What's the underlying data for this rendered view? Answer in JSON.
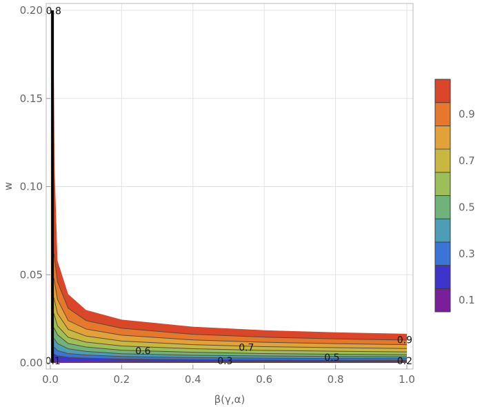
{
  "chart_data": {
    "type": "contour",
    "xlabel": "β(γ,α)",
    "ylabel": "w",
    "xlim": [
      0.0,
      1.0
    ],
    "ylim": [
      0.0,
      0.2
    ],
    "x_ticks": [
      "0.0",
      "0.2",
      "0.4",
      "0.6",
      "0.8",
      "1.0"
    ],
    "y_ticks": [
      "0.00",
      "0.05",
      "0.10",
      "0.15",
      "0.20"
    ],
    "grid": true,
    "contour_levels": [
      0.1,
      0.2,
      0.3,
      0.4,
      0.5,
      0.6,
      0.7,
      0.8,
      0.9,
      1.0
    ],
    "contour_curves": [
      {
        "level": 0.1,
        "x": [
          0.01,
          0.02,
          0.05,
          0.1,
          0.2,
          0.4,
          0.6,
          0.8,
          1.0
        ],
        "y": [
          0.0012,
          0.0011,
          0.0009,
          0.0008,
          0.0007,
          0.0006,
          0.0006,
          0.0005,
          0.0005
        ]
      },
      {
        "level": 0.2,
        "x": [
          0.01,
          0.02,
          0.05,
          0.1,
          0.2,
          0.4,
          0.6,
          0.8,
          1.0
        ],
        "y": [
          0.005,
          0.004,
          0.0032,
          0.0027,
          0.0022,
          0.0018,
          0.0016,
          0.0015,
          0.0014
        ]
      },
      {
        "level": 0.3,
        "x": [
          0.01,
          0.02,
          0.05,
          0.1,
          0.2,
          0.4,
          0.6,
          0.8,
          1.0
        ],
        "y": [
          0.009,
          0.007,
          0.0053,
          0.0045,
          0.0036,
          0.003,
          0.0027,
          0.0025,
          0.0024
        ]
      },
      {
        "level": 0.4,
        "x": [
          0.01,
          0.02,
          0.05,
          0.1,
          0.2,
          0.4,
          0.6,
          0.8,
          1.0
        ],
        "y": [
          0.014,
          0.011,
          0.008,
          0.0065,
          0.0052,
          0.0043,
          0.0039,
          0.0036,
          0.0034
        ]
      },
      {
        "level": 0.5,
        "x": [
          0.01,
          0.02,
          0.05,
          0.1,
          0.2,
          0.4,
          0.6,
          0.8,
          1.0
        ],
        "y": [
          0.02,
          0.016,
          0.011,
          0.009,
          0.0072,
          0.006,
          0.0053,
          0.0049,
          0.0046
        ]
      },
      {
        "level": 0.6,
        "x": [
          0.01,
          0.02,
          0.05,
          0.1,
          0.2,
          0.4,
          0.6,
          0.8,
          1.0
        ],
        "y": [
          0.028,
          0.021,
          0.0145,
          0.0118,
          0.0096,
          0.008,
          0.0071,
          0.0066,
          0.0062
        ]
      },
      {
        "level": 0.7,
        "x": [
          0.01,
          0.02,
          0.05,
          0.1,
          0.2,
          0.4,
          0.6,
          0.8,
          1.0
        ],
        "y": [
          0.037,
          0.028,
          0.019,
          0.0152,
          0.0124,
          0.0103,
          0.0092,
          0.0086,
          0.0081
        ]
      },
      {
        "level": 0.8,
        "x": [
          0.01,
          0.02,
          0.05,
          0.1,
          0.2,
          0.4,
          0.6,
          0.8,
          1.0
        ],
        "y": [
          0.048,
          0.036,
          0.024,
          0.0192,
          0.0157,
          0.013,
          0.0117,
          0.0109,
          0.0103
        ]
      },
      {
        "level": 0.9,
        "x": [
          0.01,
          0.02,
          0.05,
          0.1,
          0.2,
          0.4,
          0.6,
          0.8,
          1.0
        ],
        "y": [
          0.062,
          0.046,
          0.031,
          0.024,
          0.0196,
          0.0162,
          0.0146,
          0.0136,
          0.0129
        ]
      },
      {
        "level": 1.0,
        "x": [
          0.008,
          0.012,
          0.02,
          0.05,
          0.1,
          0.2,
          0.4,
          0.6,
          0.8,
          1.0
        ],
        "y": [
          0.2,
          0.11,
          0.058,
          0.039,
          0.03,
          0.0245,
          0.0205,
          0.0185,
          0.0173,
          0.0165
        ]
      }
    ],
    "contour_labels": [
      {
        "text": "0.6",
        "x": 0.26,
        "y": 0.0065
      },
      {
        "text": "0.7",
        "x": 0.55,
        "y": 0.0085
      },
      {
        "text": "0.3",
        "x": 0.49,
        "y": 0.0008
      },
      {
        "text": "0.5",
        "x": 0.79,
        "y": 0.0027
      },
      {
        "text": "0.9",
        "x": 0.995,
        "y": 0.0128
      },
      {
        "text": "0.2",
        "x": 0.995,
        "y": 0.0008
      },
      {
        "text": "0.1",
        "x": 0.005,
        "y": 0.0008
      },
      {
        "text": "0.8",
        "x": 0.007,
        "y": 0.1995
      }
    ],
    "legend": {
      "type": "colorbar",
      "placement": "right",
      "bins": [
        {
          "level": 0.1,
          "color": "#7a1f9a"
        },
        {
          "level": 0.2,
          "color": "#3d35c9"
        },
        {
          "level": 0.3,
          "color": "#3a74d6"
        },
        {
          "level": 0.4,
          "color": "#4d9db6"
        },
        {
          "level": 0.5,
          "color": "#6fb37a"
        },
        {
          "level": 0.6,
          "color": "#9dbf5a"
        },
        {
          "level": 0.7,
          "color": "#c8b842"
        },
        {
          "level": 0.8,
          "color": "#e3a13a"
        },
        {
          "level": 0.9,
          "color": "#e6782e"
        },
        {
          "level": 1.0,
          "color": "#d9462a"
        }
      ],
      "labels": [
        "0.1",
        "0.3",
        "0.5",
        "0.7",
        "0.9"
      ]
    }
  }
}
